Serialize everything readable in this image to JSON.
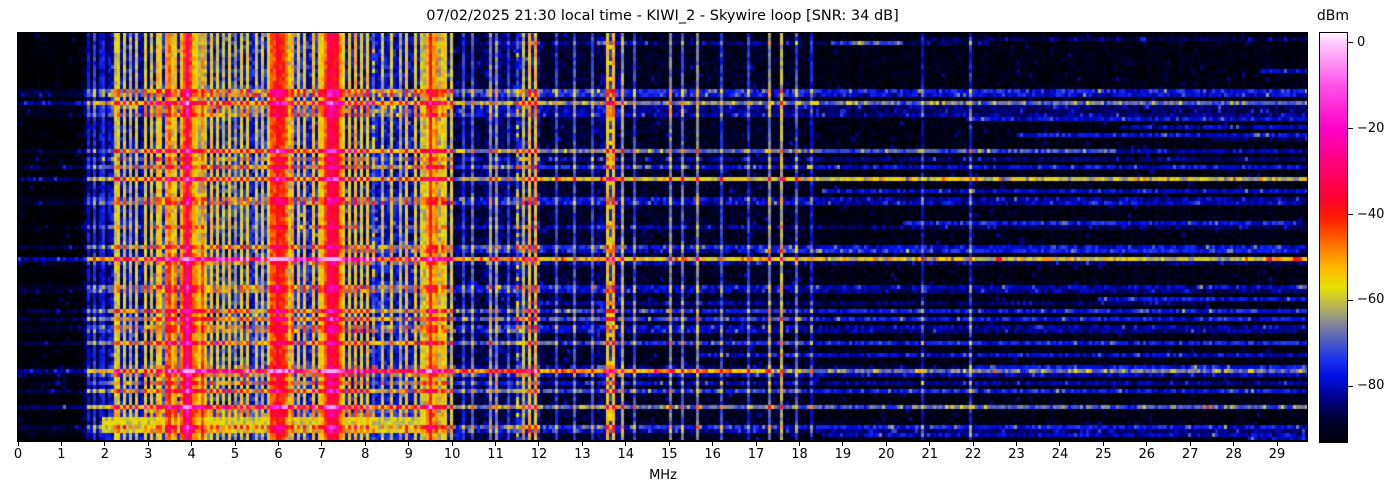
{
  "title": "07/02/2025 21:30 local time - KIWI_2 - Skywire loop [SNR: 34 dB]",
  "xlabel": "MHz",
  "colorbar": {
    "label": "dBm",
    "top_db": 2.3,
    "bottom_db": -93,
    "ticks": [
      {
        "v": 0,
        "label": "0"
      },
      {
        "v": -20,
        "label": "−20"
      },
      {
        "v": -40,
        "label": "−40"
      },
      {
        "v": -60,
        "label": "−60"
      },
      {
        "v": -80,
        "label": "−80"
      }
    ]
  },
  "chart_data": {
    "type": "heatmap",
    "subtype": "radio-spectrogram-waterfall",
    "title": "07/02/2025 21:30 local time - KIWI_2 - Skywire loop [SNR: 34 dB]",
    "xlabel": "MHz",
    "ylabel": "",
    "x_range": [
      0,
      29.69
    ],
    "x_ticks": [
      0,
      1,
      2,
      3,
      4,
      5,
      6,
      7,
      8,
      9,
      10,
      11,
      12,
      13,
      14,
      15,
      16,
      17,
      18,
      19,
      20,
      21,
      22,
      23,
      24,
      25,
      26,
      27,
      28,
      29
    ],
    "value_unit": "dBm",
    "value_range": [
      -93,
      2.3
    ],
    "grid": false,
    "legend": "colorbar-right",
    "colormap_stops": [
      [
        -95,
        "#000000"
      ],
      [
        -88,
        "#000030"
      ],
      [
        -83,
        "#000088"
      ],
      [
        -78,
        "#0010e0"
      ],
      [
        -74,
        "#1a30f0"
      ],
      [
        -70,
        "#4b5ac8"
      ],
      [
        -66,
        "#8080a0"
      ],
      [
        -62,
        "#b0b060"
      ],
      [
        -57,
        "#e8e000"
      ],
      [
        -52,
        "#ffb400"
      ],
      [
        -47,
        "#ff7000"
      ],
      [
        -41,
        "#ff2000"
      ],
      [
        -36,
        "#ff0030"
      ],
      [
        -28,
        "#ff0078"
      ],
      [
        -20,
        "#ff00c8"
      ],
      [
        -10,
        "#ff50e8"
      ],
      [
        0,
        "#ffc8ff"
      ],
      [
        3,
        "#ffffff"
      ]
    ],
    "noise_floor_bands": [
      [
        0.0,
        1.55,
        -94,
        2.5
      ],
      [
        1.55,
        2.1,
        -88,
        4
      ],
      [
        2.1,
        2.55,
        -80,
        6
      ],
      [
        2.55,
        3.05,
        -82,
        5
      ],
      [
        3.05,
        5.65,
        -77,
        7
      ],
      [
        5.65,
        7.55,
        -77,
        7
      ],
      [
        7.55,
        8.7,
        -79,
        6
      ],
      [
        8.7,
        9.95,
        -80,
        6
      ],
      [
        9.95,
        10.75,
        -87,
        4.5
      ],
      [
        10.75,
        11.1,
        -84,
        5
      ],
      [
        11.1,
        11.45,
        -86,
        4.5
      ],
      [
        11.45,
        12.0,
        -80,
        6
      ],
      [
        12.0,
        13.35,
        -89,
        4
      ],
      [
        13.35,
        13.95,
        -85,
        5
      ],
      [
        13.95,
        18.0,
        -90,
        4
      ],
      [
        18.0,
        29.7,
        -92,
        3.5
      ]
    ],
    "carriers": [
      [
        1.63,
        0.02,
        -78
      ],
      [
        1.76,
        0.02,
        -74
      ],
      [
        1.88,
        0.02,
        -79
      ],
      [
        2.0,
        0.02,
        -76
      ],
      [
        2.22,
        0.03,
        -60
      ],
      [
        2.33,
        0.02,
        -57
      ],
      [
        2.46,
        0.03,
        -59
      ],
      [
        2.62,
        0.02,
        -63
      ],
      [
        2.76,
        0.02,
        -59
      ],
      [
        2.92,
        0.03,
        -57
      ],
      [
        3.08,
        0.02,
        -59
      ],
      [
        3.2,
        0.04,
        -54
      ],
      [
        3.3,
        0.03,
        -56
      ],
      [
        3.42,
        0.03,
        -51
      ],
      [
        3.52,
        0.03,
        -47
      ],
      [
        3.62,
        0.04,
        -54
      ],
      [
        3.74,
        0.03,
        -55
      ],
      [
        3.83,
        0.02,
        -57
      ],
      [
        3.92,
        0.02,
        -30
      ],
      [
        4.02,
        0.03,
        -54
      ],
      [
        4.14,
        0.02,
        -56
      ],
      [
        4.27,
        0.03,
        -49
      ],
      [
        4.42,
        0.03,
        -55
      ],
      [
        4.56,
        0.02,
        -57
      ],
      [
        4.72,
        0.02,
        -61
      ],
      [
        4.86,
        0.02,
        -56
      ],
      [
        5.0,
        0.02,
        -64
      ],
      [
        5.13,
        0.02,
        -57
      ],
      [
        5.3,
        0.02,
        -56
      ],
      [
        5.46,
        0.02,
        -59
      ],
      [
        5.62,
        0.02,
        -60
      ],
      [
        5.87,
        0.04,
        -44
      ],
      [
        5.97,
        0.03,
        -37
      ],
      [
        6.08,
        0.04,
        -41
      ],
      [
        6.19,
        0.03,
        -47
      ],
      [
        6.31,
        0.03,
        -51
      ],
      [
        6.46,
        0.02,
        -57
      ],
      [
        6.62,
        0.02,
        -55
      ],
      [
        6.77,
        0.03,
        -54
      ],
      [
        6.92,
        0.02,
        -56
      ],
      [
        7.05,
        0.02,
        -59
      ],
      [
        7.2,
        0.06,
        -32
      ],
      [
        7.32,
        0.04,
        -37
      ],
      [
        7.46,
        0.03,
        -54
      ],
      [
        7.62,
        0.02,
        -56
      ],
      [
        7.78,
        0.03,
        -53
      ],
      [
        7.92,
        0.02,
        -57
      ],
      [
        8.07,
        0.02,
        -55
      ],
      [
        8.17,
        0.02,
        -54,
        "d"
      ],
      [
        8.37,
        0.02,
        -61
      ],
      [
        8.57,
        0.02,
        -59
      ],
      [
        8.77,
        0.02,
        -63
      ],
      [
        8.97,
        0.03,
        -55
      ],
      [
        9.12,
        0.02,
        -57
      ],
      [
        9.32,
        0.02,
        -59
      ],
      [
        9.5,
        0.05,
        -39
      ],
      [
        9.63,
        0.04,
        -49
      ],
      [
        9.77,
        0.04,
        -53
      ],
      [
        9.85,
        0.02,
        -57
      ],
      [
        9.98,
        0.02,
        -59
      ],
      [
        10.28,
        0.02,
        -74
      ],
      [
        10.48,
        0.02,
        -70
      ],
      [
        10.85,
        0.02,
        -65
      ],
      [
        11.0,
        0.02,
        -66
      ],
      [
        11.28,
        0.02,
        -74
      ],
      [
        11.53,
        0.02,
        -58,
        "d"
      ],
      [
        11.66,
        0.02,
        -62
      ],
      [
        11.78,
        0.025,
        -54
      ],
      [
        11.88,
        0.025,
        -53
      ],
      [
        12.42,
        0.02,
        -74
      ],
      [
        12.82,
        0.02,
        -72
      ],
      [
        13.22,
        0.02,
        -73
      ],
      [
        13.55,
        0.02,
        -55
      ],
      [
        13.62,
        0.02,
        -57,
        "d"
      ],
      [
        13.73,
        0.025,
        -53
      ],
      [
        13.88,
        0.02,
        -64
      ],
      [
        14.22,
        0.02,
        -72
      ],
      [
        15.02,
        0.02,
        -67
      ],
      [
        15.32,
        0.02,
        -70
      ],
      [
        15.67,
        0.02,
        -67
      ],
      [
        16.22,
        0.02,
        -73
      ],
      [
        16.82,
        0.02,
        -75
      ],
      [
        17.27,
        0.03,
        -67
      ],
      [
        17.6,
        0.03,
        -62
      ],
      [
        17.92,
        0.02,
        -72
      ],
      [
        18.24,
        0.02,
        -77
      ],
      [
        20.85,
        0.02,
        -79
      ],
      [
        21.9,
        0.02,
        -75
      ]
    ],
    "patches": [
      {
        "f0": 3.3,
        "f1": 4.45,
        "r0": 55,
        "r1": 101,
        "db": 5
      },
      {
        "f0": 2.1,
        "f1": 9.6,
        "r0": 93,
        "r1": 95,
        "db": 7
      }
    ],
    "impulse_rows": {
      "count": 62,
      "amp_min": 6,
      "amp_max": 20,
      "full_prob": 0.6,
      "left_fade_mhz": 1.6,
      "left_fade_factor": 0.45
    },
    "speckle": {
      "prob": 0.022,
      "db": 8
    },
    "bottom_event": {
      "r0": 96,
      "r1": 99,
      "f0": 1.95,
      "f1": 9.75,
      "db": -64,
      "jitter": 9,
      "tail": {
        "r0": 100,
        "r1": 101,
        "f0": 1.95,
        "f1": 10.3,
        "db": -81,
        "jitter": 7
      }
    },
    "seed": 7,
    "grid_cells": {
      "cols": 430,
      "rows": 102
    }
  }
}
